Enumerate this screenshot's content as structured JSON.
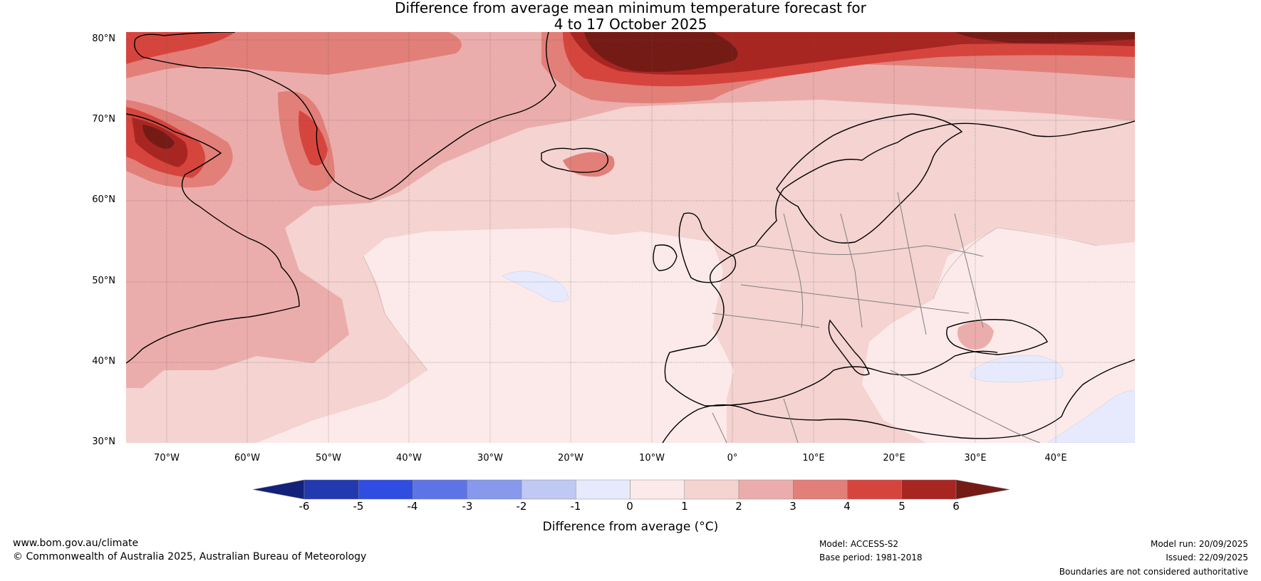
{
  "title": {
    "line1": "Difference from average mean minimum temperature forecast for",
    "line2": "4 to 17 October 2025"
  },
  "map": {
    "lat_labels": [
      "80°N",
      "70°N",
      "60°N",
      "50°N",
      "40°N",
      "30°N"
    ],
    "lon_labels": [
      "70°W",
      "60°W",
      "50°W",
      "40°W",
      "30°W",
      "20°W",
      "10°W",
      "0°",
      "10°E",
      "20°E",
      "30°E",
      "40°E"
    ],
    "colors": {
      "neg6": "#14217a",
      "neg5": "#2239b0",
      "neg4": "#2f4de0",
      "neg3": "#5d74e6",
      "neg2": "#8898ec",
      "neg1": "#c0c8f4",
      "zero_neg": "#e6eafc",
      "pos0_1": "#fbeae9",
      "pos1_2": "#f4d3d1",
      "pos2_3": "#ebadab",
      "pos3_4": "#e27f79",
      "pos4_5": "#d6453d",
      "pos5_6": "#a82622",
      "pos6": "#751b16"
    }
  },
  "colorbar": {
    "ticks": [
      "-6",
      "-5",
      "-4",
      "-3",
      "-2",
      "-1",
      "0",
      "1",
      "2",
      "3",
      "4",
      "5",
      "6"
    ],
    "label": "Difference from average (°C)"
  },
  "footer": {
    "website": "www.bom.gov.au/climate",
    "copyright": "© Commonwealth of Australia 2025, Australian Bureau of Meteorology",
    "model": "Model: ACCESS-S2",
    "base_period": "Base period: 1981-2018",
    "model_run": "Model run: 20/09/2025",
    "issued": "Issued: 22/09/2025",
    "disclaimer": "Boundaries are not considered authoritative"
  }
}
